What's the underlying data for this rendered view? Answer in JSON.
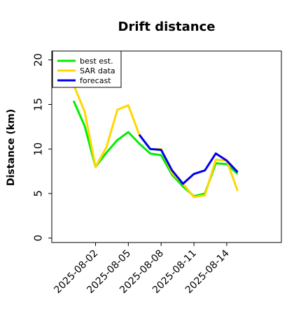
{
  "chart_data": {
    "type": "line",
    "title": "Drift distance",
    "xlabel": "",
    "ylabel": "Distance (km)",
    "x_ticks": [
      "2025-08-02",
      "2025-08-05",
      "2025-08-08",
      "2025-08-11",
      "2025-08-14"
    ],
    "xlim": [
      "2025-07-29",
      "2025-08-19"
    ],
    "ylim": [
      -0.5,
      21
    ],
    "y_ticks": [
      0,
      5,
      10,
      15,
      20
    ],
    "grid": false,
    "legend_position": "top-left",
    "series": [
      {
        "name": "best est.",
        "color": "#00ee00",
        "x": [
          "2025-07-31",
          "2025-08-01",
          "2025-08-02",
          "2025-08-03",
          "2025-08-04",
          "2025-08-05",
          "2025-08-06",
          "2025-08-07",
          "2025-08-08",
          "2025-08-09",
          "2025-08-10",
          "2025-08-11",
          "2025-08-12",
          "2025-08-13",
          "2025-08-14",
          "2025-08-15",
          "2025-08-16"
        ],
        "y": [
          15.4,
          12.6,
          8.0,
          9.6,
          11.0,
          11.9,
          10.6,
          9.5,
          9.3,
          7.1,
          5.8,
          4.7,
          5.0,
          8.4,
          8.3,
          7.2,
          null
        ]
      },
      {
        "name": "SAR data",
        "color": "#ffd700",
        "x": [
          "2025-07-31",
          "2025-08-01",
          "2025-08-02",
          "2025-08-03",
          "2025-08-04",
          "2025-08-05",
          "2025-08-06",
          "2025-08-07",
          "2025-08-08",
          "2025-08-09",
          "2025-08-10",
          "2025-08-11",
          "2025-08-12",
          "2025-08-13",
          "2025-08-14",
          "2025-08-15",
          "2025-08-16"
        ],
        "y": [
          17.2,
          14.2,
          8.0,
          10.2,
          14.4,
          14.9,
          11.6,
          10.0,
          10.0,
          7.3,
          6.1,
          4.6,
          4.8,
          8.8,
          8.7,
          5.3,
          null
        ]
      },
      {
        "name": "forecast",
        "color": "#0000ee",
        "x": [
          "2025-08-06",
          "2025-08-07",
          "2025-08-08",
          "2025-08-09",
          "2025-08-10",
          "2025-08-11",
          "2025-08-12",
          "2025-08-13",
          "2025-08-14",
          "2025-08-15"
        ],
        "y": [
          11.6,
          10.0,
          9.9,
          7.6,
          6.1,
          7.2,
          7.6,
          9.5,
          8.7,
          7.4
        ]
      }
    ]
  }
}
